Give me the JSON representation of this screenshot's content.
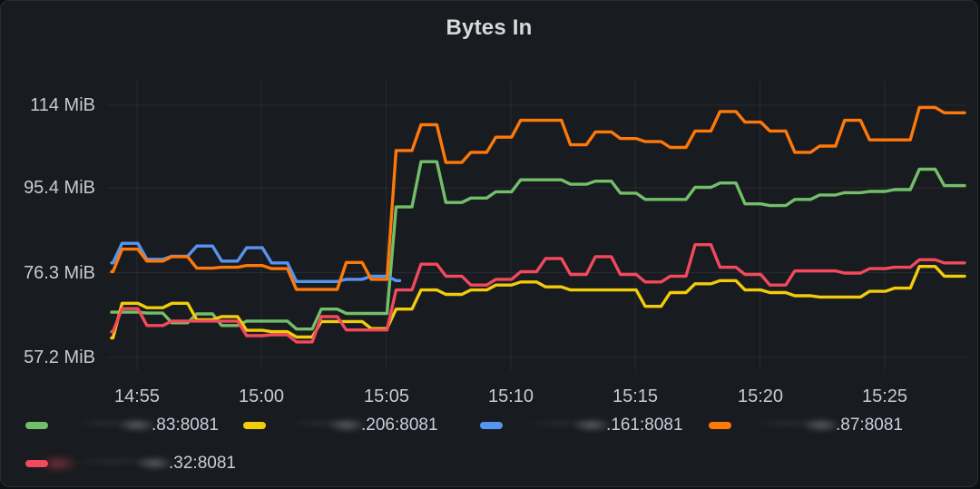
{
  "panel": {
    "title": "Bytes In"
  },
  "chart_data": {
    "type": "line",
    "title": "Bytes In",
    "xlabel": "",
    "ylabel": "",
    "unit": "MiB",
    "grid": true,
    "legend_position": "bottom",
    "line_style": "stepped",
    "ylim": [
      53,
      118
    ],
    "x_times": [
      "14:54",
      "14:55",
      "14:56",
      "14:57",
      "14:58",
      "14:59",
      "15:00",
      "15:01",
      "15:02",
      "15:03",
      "15:04",
      "15:05",
      "15:06",
      "15:07",
      "15:08",
      "15:09",
      "15:10",
      "15:11",
      "15:12",
      "15:13",
      "15:14",
      "15:15",
      "15:16",
      "15:17",
      "15:18",
      "15:19",
      "15:20",
      "15:21",
      "15:22",
      "15:23",
      "15:24",
      "15:25",
      "15:26",
      "15:27",
      "15:28"
    ],
    "x_tick_labels": [
      "14:55",
      "15:00",
      "15:05",
      "15:10",
      "15:15",
      "15:20",
      "15:25"
    ],
    "x_tick_indices": [
      1,
      6,
      11,
      16,
      21,
      26,
      31
    ],
    "y_tick_values": [
      114,
      95.4,
      76.3,
      57.2
    ],
    "y_tick_labels": [
      "114 MiB",
      "95.4 MiB",
      "76.3 MiB",
      "57.2 MiB"
    ],
    "series": [
      {
        "key": "green",
        "name": ".83:8081",
        "color": "#73BF69",
        "redacted_prefix": true,
        "values": [
          67.4,
          67.4,
          67.2,
          65.0,
          67.0,
          64.4,
          65.4,
          65.4,
          63.6,
          68.1,
          67.1,
          67.1,
          91.1,
          101.3,
          92.1,
          93.1,
          94.5,
          97.2,
          97.2,
          96.2,
          96.9,
          94.2,
          92.8,
          92.8,
          95.5,
          96.5,
          91.8,
          91.4,
          92.8,
          93.8,
          94.3,
          94.6,
          95.0,
          99.6,
          95.9
        ]
      },
      {
        "key": "yellow",
        "name": ".206:8081",
        "color": "#F2CC0C",
        "redacted_prefix": true,
        "values": [
          61.6,
          69.4,
          68.4,
          69.4,
          65.7,
          66.4,
          63.3,
          63.0,
          61.8,
          65.3,
          65.3,
          63.7,
          68.1,
          72.4,
          71.4,
          72.4,
          73.5,
          74.2,
          73.1,
          72.4,
          72.4,
          72.4,
          68.7,
          71.8,
          73.8,
          74.5,
          72.4,
          71.8,
          71.1,
          70.8,
          70.8,
          72.1,
          72.8,
          77.7,
          75.5
        ]
      },
      {
        "key": "blue",
        "name": ".161:8081",
        "color": "#5794F2",
        "redacted_prefix": true,
        "values": [
          78.5,
          82.9,
          79.3,
          80.0,
          82.3,
          78.9,
          81.9,
          78.5,
          74.3,
          74.3,
          74.8,
          75.5,
          74.5,
          null,
          null,
          null,
          null,
          null,
          null,
          null,
          null,
          null,
          null,
          null,
          null,
          null,
          null,
          null,
          null,
          null,
          null,
          null,
          null,
          null,
          null
        ]
      },
      {
        "key": "orange",
        "name": ".87:8081",
        "color": "#FF780A",
        "redacted_prefix": true,
        "values": [
          76.5,
          81.6,
          78.9,
          79.9,
          77.3,
          77.5,
          77.9,
          77.2,
          72.5,
          72.5,
          78.6,
          74.8,
          103.8,
          109.6,
          101.1,
          103.4,
          106.8,
          110.6,
          110.6,
          105.1,
          108.0,
          106.5,
          105.8,
          104.5,
          108.2,
          112.6,
          110.2,
          108.2,
          103.4,
          104.8,
          110.6,
          106.2,
          106.2,
          113.5,
          112.3
        ]
      },
      {
        "key": "red",
        "name": ".32:8081",
        "color": "#F2495C",
        "redacted_prefix": true,
        "values": [
          63.0,
          68.2,
          64.4,
          65.4,
          65.4,
          65.4,
          62.1,
          62.3,
          60.7,
          66.4,
          63.4,
          63.4,
          72.4,
          78.2,
          75.5,
          73.5,
          74.8,
          76.5,
          79.5,
          75.9,
          79.9,
          75.9,
          74.2,
          75.5,
          82.6,
          77.5,
          75.9,
          73.5,
          76.7,
          76.7,
          76.2,
          77.2,
          77.5,
          79.2,
          78.5
        ]
      }
    ]
  }
}
